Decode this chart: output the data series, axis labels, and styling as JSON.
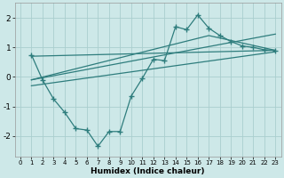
{
  "xlabel": "Humidex (Indice chaleur)",
  "background_color": "#cde8e8",
  "grid_color": "#aacece",
  "line_color": "#2e7d7d",
  "xlim": [
    -0.5,
    23.5
  ],
  "ylim": [
    -2.7,
    2.5
  ],
  "yticks": [
    -2,
    -1,
    0,
    1,
    2
  ],
  "xticks": [
    0,
    1,
    2,
    3,
    4,
    5,
    6,
    7,
    8,
    9,
    10,
    11,
    12,
    13,
    14,
    15,
    16,
    17,
    18,
    19,
    20,
    21,
    22,
    23
  ],
  "series_with_markers": {
    "x": [
      1,
      2,
      3,
      4,
      5,
      6,
      7,
      8,
      9,
      10,
      11,
      12,
      13,
      14,
      15,
      16,
      17,
      18,
      19,
      20,
      21,
      22,
      23
    ],
    "y": [
      0.75,
      -0.1,
      -0.75,
      -1.2,
      -1.75,
      -1.8,
      -2.35,
      -1.85,
      -1.85,
      -0.65,
      -0.05,
      0.6,
      0.55,
      1.7,
      1.6,
      2.1,
      1.65,
      1.4,
      1.2,
      1.05,
      1.0,
      0.92,
      0.9
    ]
  },
  "line1": {
    "x": [
      1,
      23
    ],
    "y": [
      0.7,
      0.9
    ]
  },
  "line2": {
    "x": [
      1,
      17,
      23
    ],
    "y": [
      -0.1,
      1.4,
      0.9
    ]
  },
  "line3": {
    "x": [
      1,
      23
    ],
    "y": [
      -0.1,
      1.45
    ]
  },
  "line4": {
    "x": [
      1,
      23
    ],
    "y": [
      -0.3,
      0.85
    ]
  }
}
